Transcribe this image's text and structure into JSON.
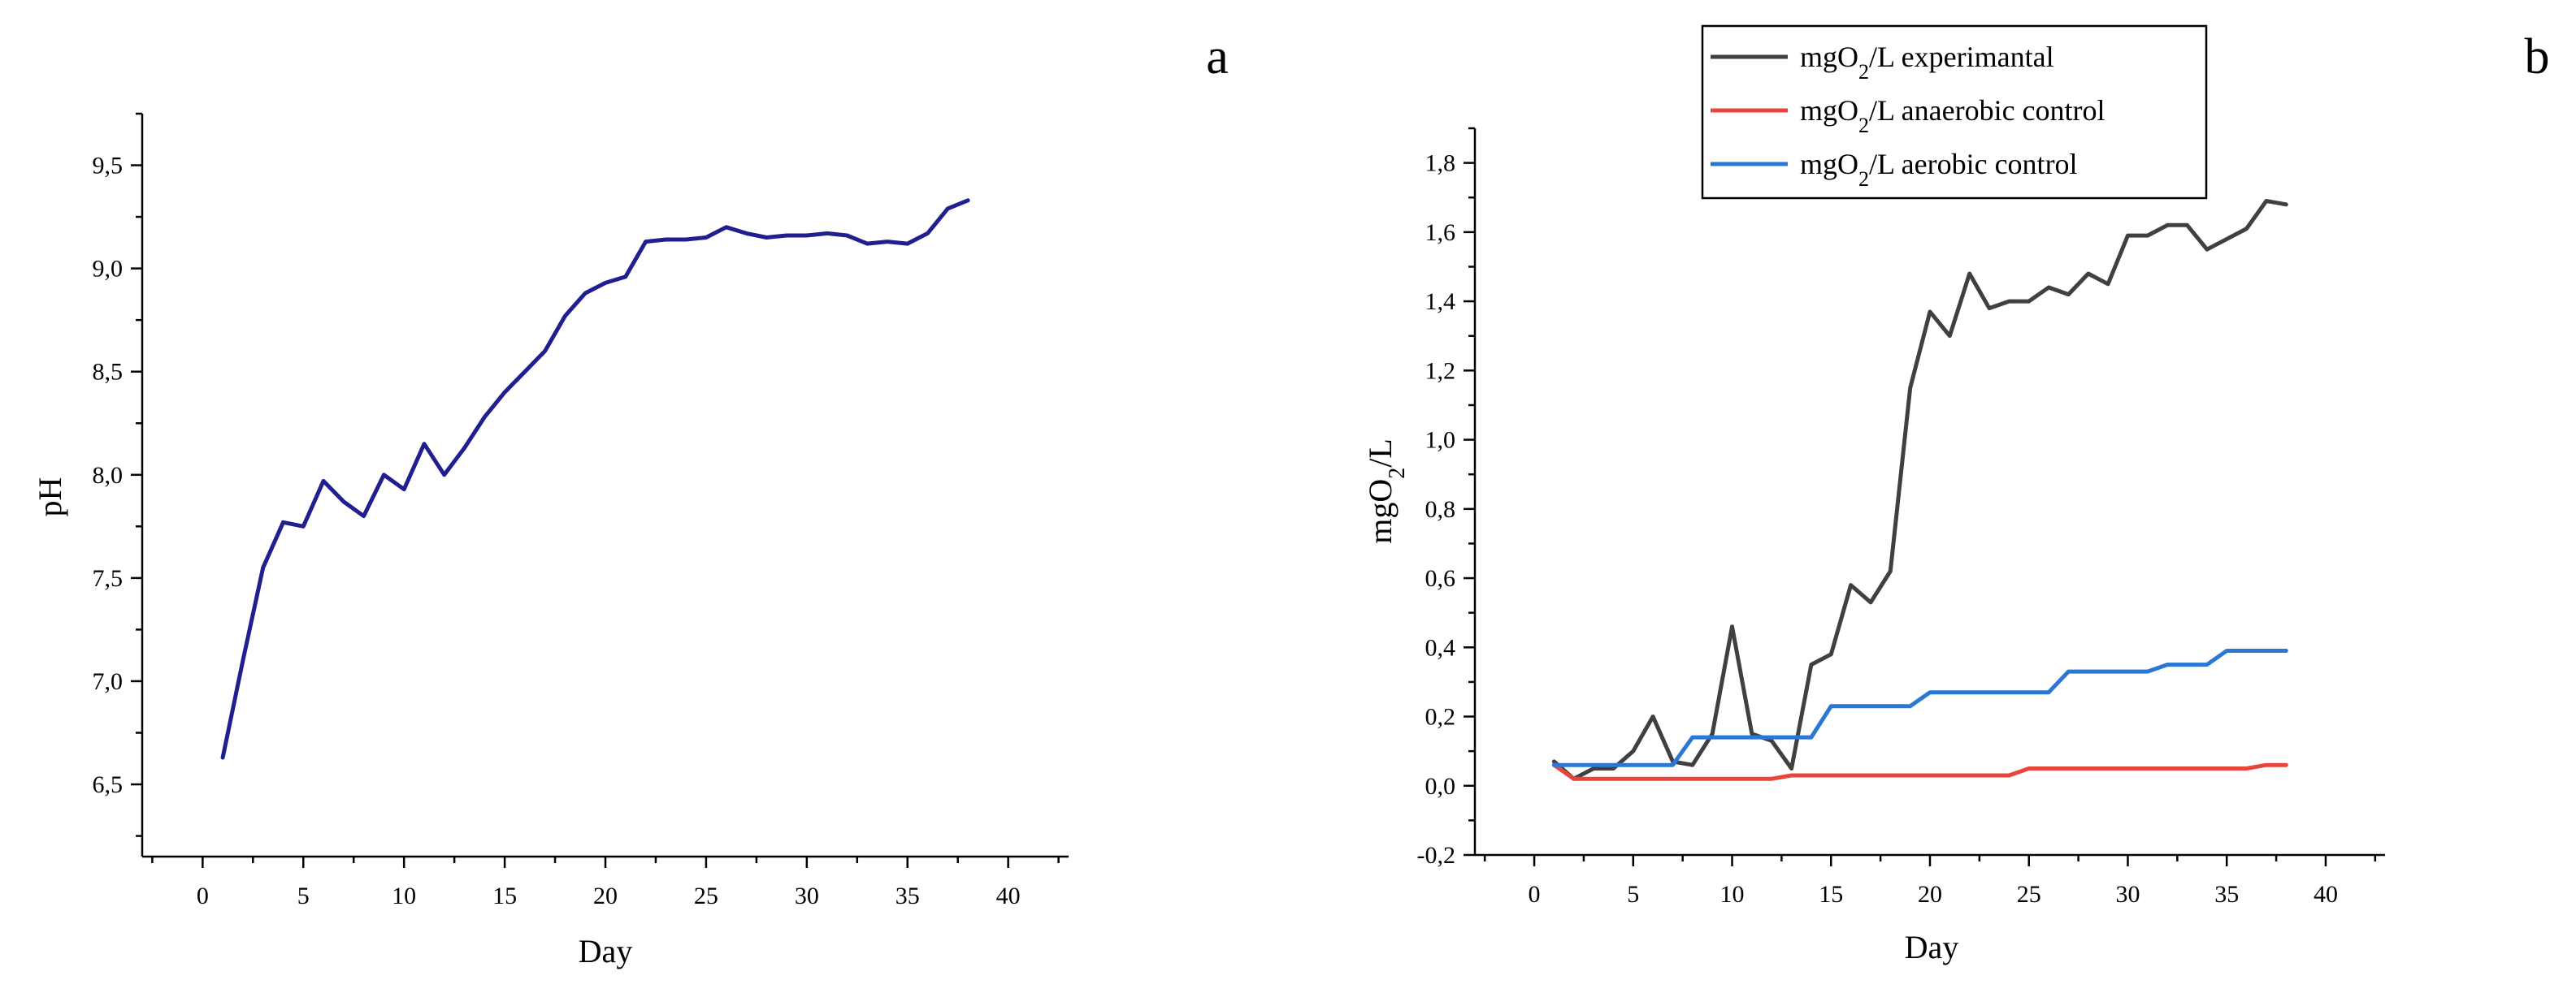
{
  "chart_data": [
    {
      "type": "line",
      "panel_label": "a",
      "title": "",
      "xlabel": "Day",
      "ylabel": "pH",
      "xlim": [
        -3,
        43
      ],
      "ylim": [
        6.15,
        9.75
      ],
      "xticks": [
        0,
        5,
        10,
        15,
        20,
        25,
        30,
        35,
        40
      ],
      "yticks": [
        6.5,
        7.0,
        7.5,
        8.0,
        8.5,
        9.0,
        9.5
      ],
      "decimal_separator": ",",
      "grid": false,
      "series": [
        {
          "name": "pH",
          "color": "#1f1f8f",
          "x": [
            1,
            2,
            3,
            4,
            5,
            6,
            7,
            8,
            9,
            10,
            11,
            12,
            13,
            14,
            15,
            16,
            17,
            18,
            19,
            20,
            21,
            22,
            23,
            24,
            25,
            26,
            27,
            28,
            29,
            30,
            31,
            32,
            33,
            34,
            35,
            36,
            37,
            38
          ],
          "y": [
            6.63,
            7.1,
            7.55,
            7.77,
            7.75,
            7.97,
            7.87,
            7.8,
            8.0,
            7.93,
            8.15,
            8.0,
            8.13,
            8.28,
            8.4,
            8.5,
            8.6,
            8.77,
            8.88,
            8.93,
            8.96,
            9.13,
            9.14,
            9.14,
            9.15,
            9.2,
            9.17,
            9.15,
            9.16,
            9.16,
            9.17,
            9.16,
            9.12,
            9.13,
            9.12,
            9.17,
            9.29,
            9.33
          ]
        }
      ]
    },
    {
      "type": "line",
      "panel_label": "b",
      "title": "",
      "xlabel": "Day",
      "ylabel": "mgO2/L",
      "ylabel_parts": {
        "pre": "mgO",
        "sub": "2",
        "post": "/L"
      },
      "xlim": [
        -3,
        43
      ],
      "ylim": [
        -0.2,
        1.9
      ],
      "xticks": [
        0,
        5,
        10,
        15,
        20,
        25,
        30,
        35,
        40
      ],
      "yticks": [
        -0.2,
        0.0,
        0.2,
        0.4,
        0.6,
        0.8,
        1.0,
        1.2,
        1.4,
        1.6,
        1.8
      ],
      "decimal_separator": ",",
      "grid": false,
      "legend_position": "top-center",
      "series": [
        {
          "name": "mgO2/L experimantal",
          "legend_parts": {
            "pre": "mgO",
            "sub": "2",
            "post": "/L experimantal"
          },
          "color": "#404040",
          "x": [
            1,
            2,
            3,
            4,
            5,
            6,
            7,
            8,
            9,
            10,
            11,
            12,
            13,
            14,
            15,
            16,
            17,
            18,
            19,
            20,
            21,
            22,
            23,
            24,
            25,
            26,
            27,
            28,
            29,
            30,
            31,
            32,
            33,
            34,
            35,
            36,
            37,
            38
          ],
          "y": [
            0.07,
            0.02,
            0.05,
            0.05,
            0.1,
            0.2,
            0.07,
            0.06,
            0.15,
            0.46,
            0.15,
            0.13,
            0.05,
            0.35,
            0.38,
            0.58,
            0.53,
            0.62,
            1.15,
            1.37,
            1.3,
            1.48,
            1.38,
            1.4,
            1.4,
            1.44,
            1.42,
            1.48,
            1.45,
            1.59,
            1.59,
            1.62,
            1.62,
            1.55,
            1.58,
            1.61,
            1.69,
            1.68
          ]
        },
        {
          "name": "mgO2/L anaerobic control",
          "legend_parts": {
            "pre": "mgO",
            "sub": "2",
            "post": "/L anaerobic control"
          },
          "color": "#e8453c",
          "x": [
            1,
            2,
            3,
            4,
            5,
            6,
            7,
            8,
            9,
            10,
            11,
            12,
            13,
            14,
            15,
            16,
            17,
            18,
            19,
            20,
            21,
            22,
            23,
            24,
            25,
            26,
            27,
            28,
            29,
            30,
            31,
            32,
            33,
            34,
            35,
            36,
            37,
            38
          ],
          "y": [
            0.06,
            0.02,
            0.02,
            0.02,
            0.02,
            0.02,
            0.02,
            0.02,
            0.02,
            0.02,
            0.02,
            0.02,
            0.03,
            0.03,
            0.03,
            0.03,
            0.03,
            0.03,
            0.03,
            0.03,
            0.03,
            0.03,
            0.03,
            0.03,
            0.05,
            0.05,
            0.05,
            0.05,
            0.05,
            0.05,
            0.05,
            0.05,
            0.05,
            0.05,
            0.05,
            0.05,
            0.06,
            0.06
          ]
        },
        {
          "name": "mgO2/L aerobic control",
          "legend_parts": {
            "pre": "mgO",
            "sub": "2",
            "post": "/L aerobic control"
          },
          "color": "#2a78d6",
          "x": [
            1,
            2,
            3,
            4,
            5,
            6,
            7,
            8,
            9,
            10,
            11,
            12,
            13,
            14,
            15,
            16,
            17,
            18,
            19,
            20,
            21,
            22,
            23,
            24,
            25,
            26,
            27,
            28,
            29,
            30,
            31,
            32,
            33,
            34,
            35,
            36,
            37,
            38
          ],
          "y": [
            0.06,
            0.06,
            0.06,
            0.06,
            0.06,
            0.06,
            0.06,
            0.14,
            0.14,
            0.14,
            0.14,
            0.14,
            0.14,
            0.14,
            0.23,
            0.23,
            0.23,
            0.23,
            0.23,
            0.27,
            0.27,
            0.27,
            0.27,
            0.27,
            0.27,
            0.27,
            0.33,
            0.33,
            0.33,
            0.33,
            0.33,
            0.35,
            0.35,
            0.35,
            0.39,
            0.39,
            0.39,
            0.39
          ]
        }
      ]
    }
  ]
}
